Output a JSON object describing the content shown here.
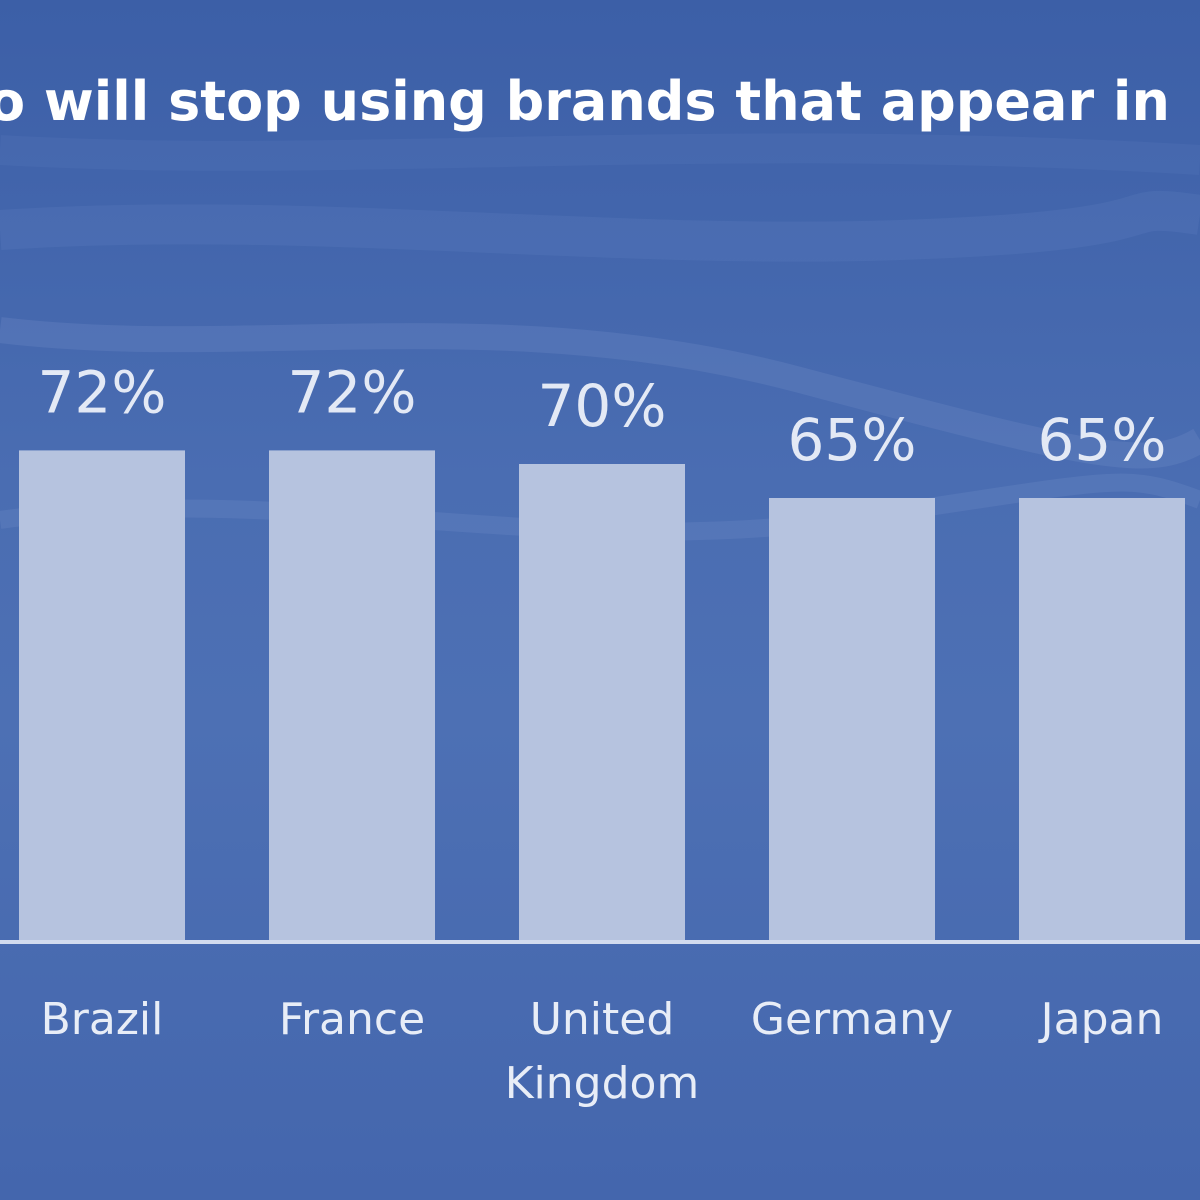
{
  "title": "o will stop using brands that appear in",
  "colors": {
    "background": "#4a6db2",
    "bar": "#b6c3df",
    "text": "#ffffff"
  },
  "chart_data": {
    "type": "bar",
    "title": "o will stop using brands that appear in",
    "categories": [
      "",
      "Brazil",
      "France",
      "United Kingdom",
      "Germany",
      "Japan",
      ""
    ],
    "category_lines": [
      [
        ""
      ],
      [
        "Brazil"
      ],
      [
        "France"
      ],
      [
        "United",
        "Kingdom"
      ],
      [
        "Germany"
      ],
      [
        "Japan"
      ],
      [
        ""
      ]
    ],
    "values": [
      null,
      72,
      72,
      70,
      65,
      65,
      null
    ],
    "value_labels": [
      "",
      "72%",
      "72%",
      "70%",
      "65%",
      "65%",
      ""
    ],
    "xlabel": "",
    "ylabel": "",
    "ylim": [
      0,
      100
    ],
    "grid": false,
    "legend": "none"
  }
}
